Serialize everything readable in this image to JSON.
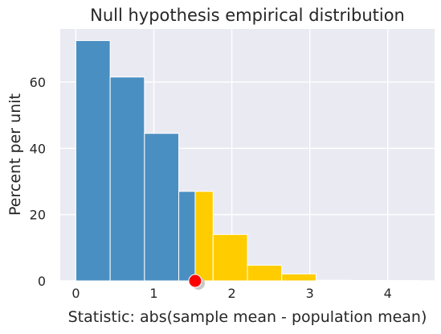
{
  "chart_data": {
    "type": "bar",
    "title": "Null hypothesis empirical distribution",
    "xlabel": "Statistic: abs(sample mean - population mean)",
    "ylabel": "Percent per unit",
    "xlim": [
      -0.2,
      4.6
    ],
    "ylim": [
      0,
      76
    ],
    "x_ticks": [
      0,
      1,
      2,
      3,
      4
    ],
    "y_ticks": [
      0,
      20,
      40,
      60
    ],
    "grid": true,
    "background_color": "#eaeaf2",
    "colors": {
      "below": "#4a8fc2",
      "above": "#ffcc00",
      "observed_marker": "#ff0000"
    },
    "bins": [
      {
        "start": 0.0,
        "end": 0.44,
        "value": 72.5,
        "region": "below"
      },
      {
        "start": 0.44,
        "end": 0.88,
        "value": 61.5,
        "region": "below"
      },
      {
        "start": 0.88,
        "end": 1.32,
        "value": 44.5,
        "region": "below"
      },
      {
        "start": 1.32,
        "end": 1.53,
        "value": 27.0,
        "region": "below"
      },
      {
        "start": 1.53,
        "end": 1.76,
        "value": 27.0,
        "region": "above"
      },
      {
        "start": 1.76,
        "end": 2.2,
        "value": 14.0,
        "region": "above"
      },
      {
        "start": 2.2,
        "end": 2.64,
        "value": 4.7,
        "region": "above"
      },
      {
        "start": 2.64,
        "end": 3.08,
        "value": 2.1,
        "region": "above"
      },
      {
        "start": 3.08,
        "end": 3.52,
        "value": 0.2,
        "region": "above"
      },
      {
        "start": 3.52,
        "end": 3.96,
        "value": 0.15,
        "region": "above"
      },
      {
        "start": 3.96,
        "end": 4.4,
        "value": 0.1,
        "region": "above"
      }
    ],
    "observed_statistic": 1.53
  }
}
